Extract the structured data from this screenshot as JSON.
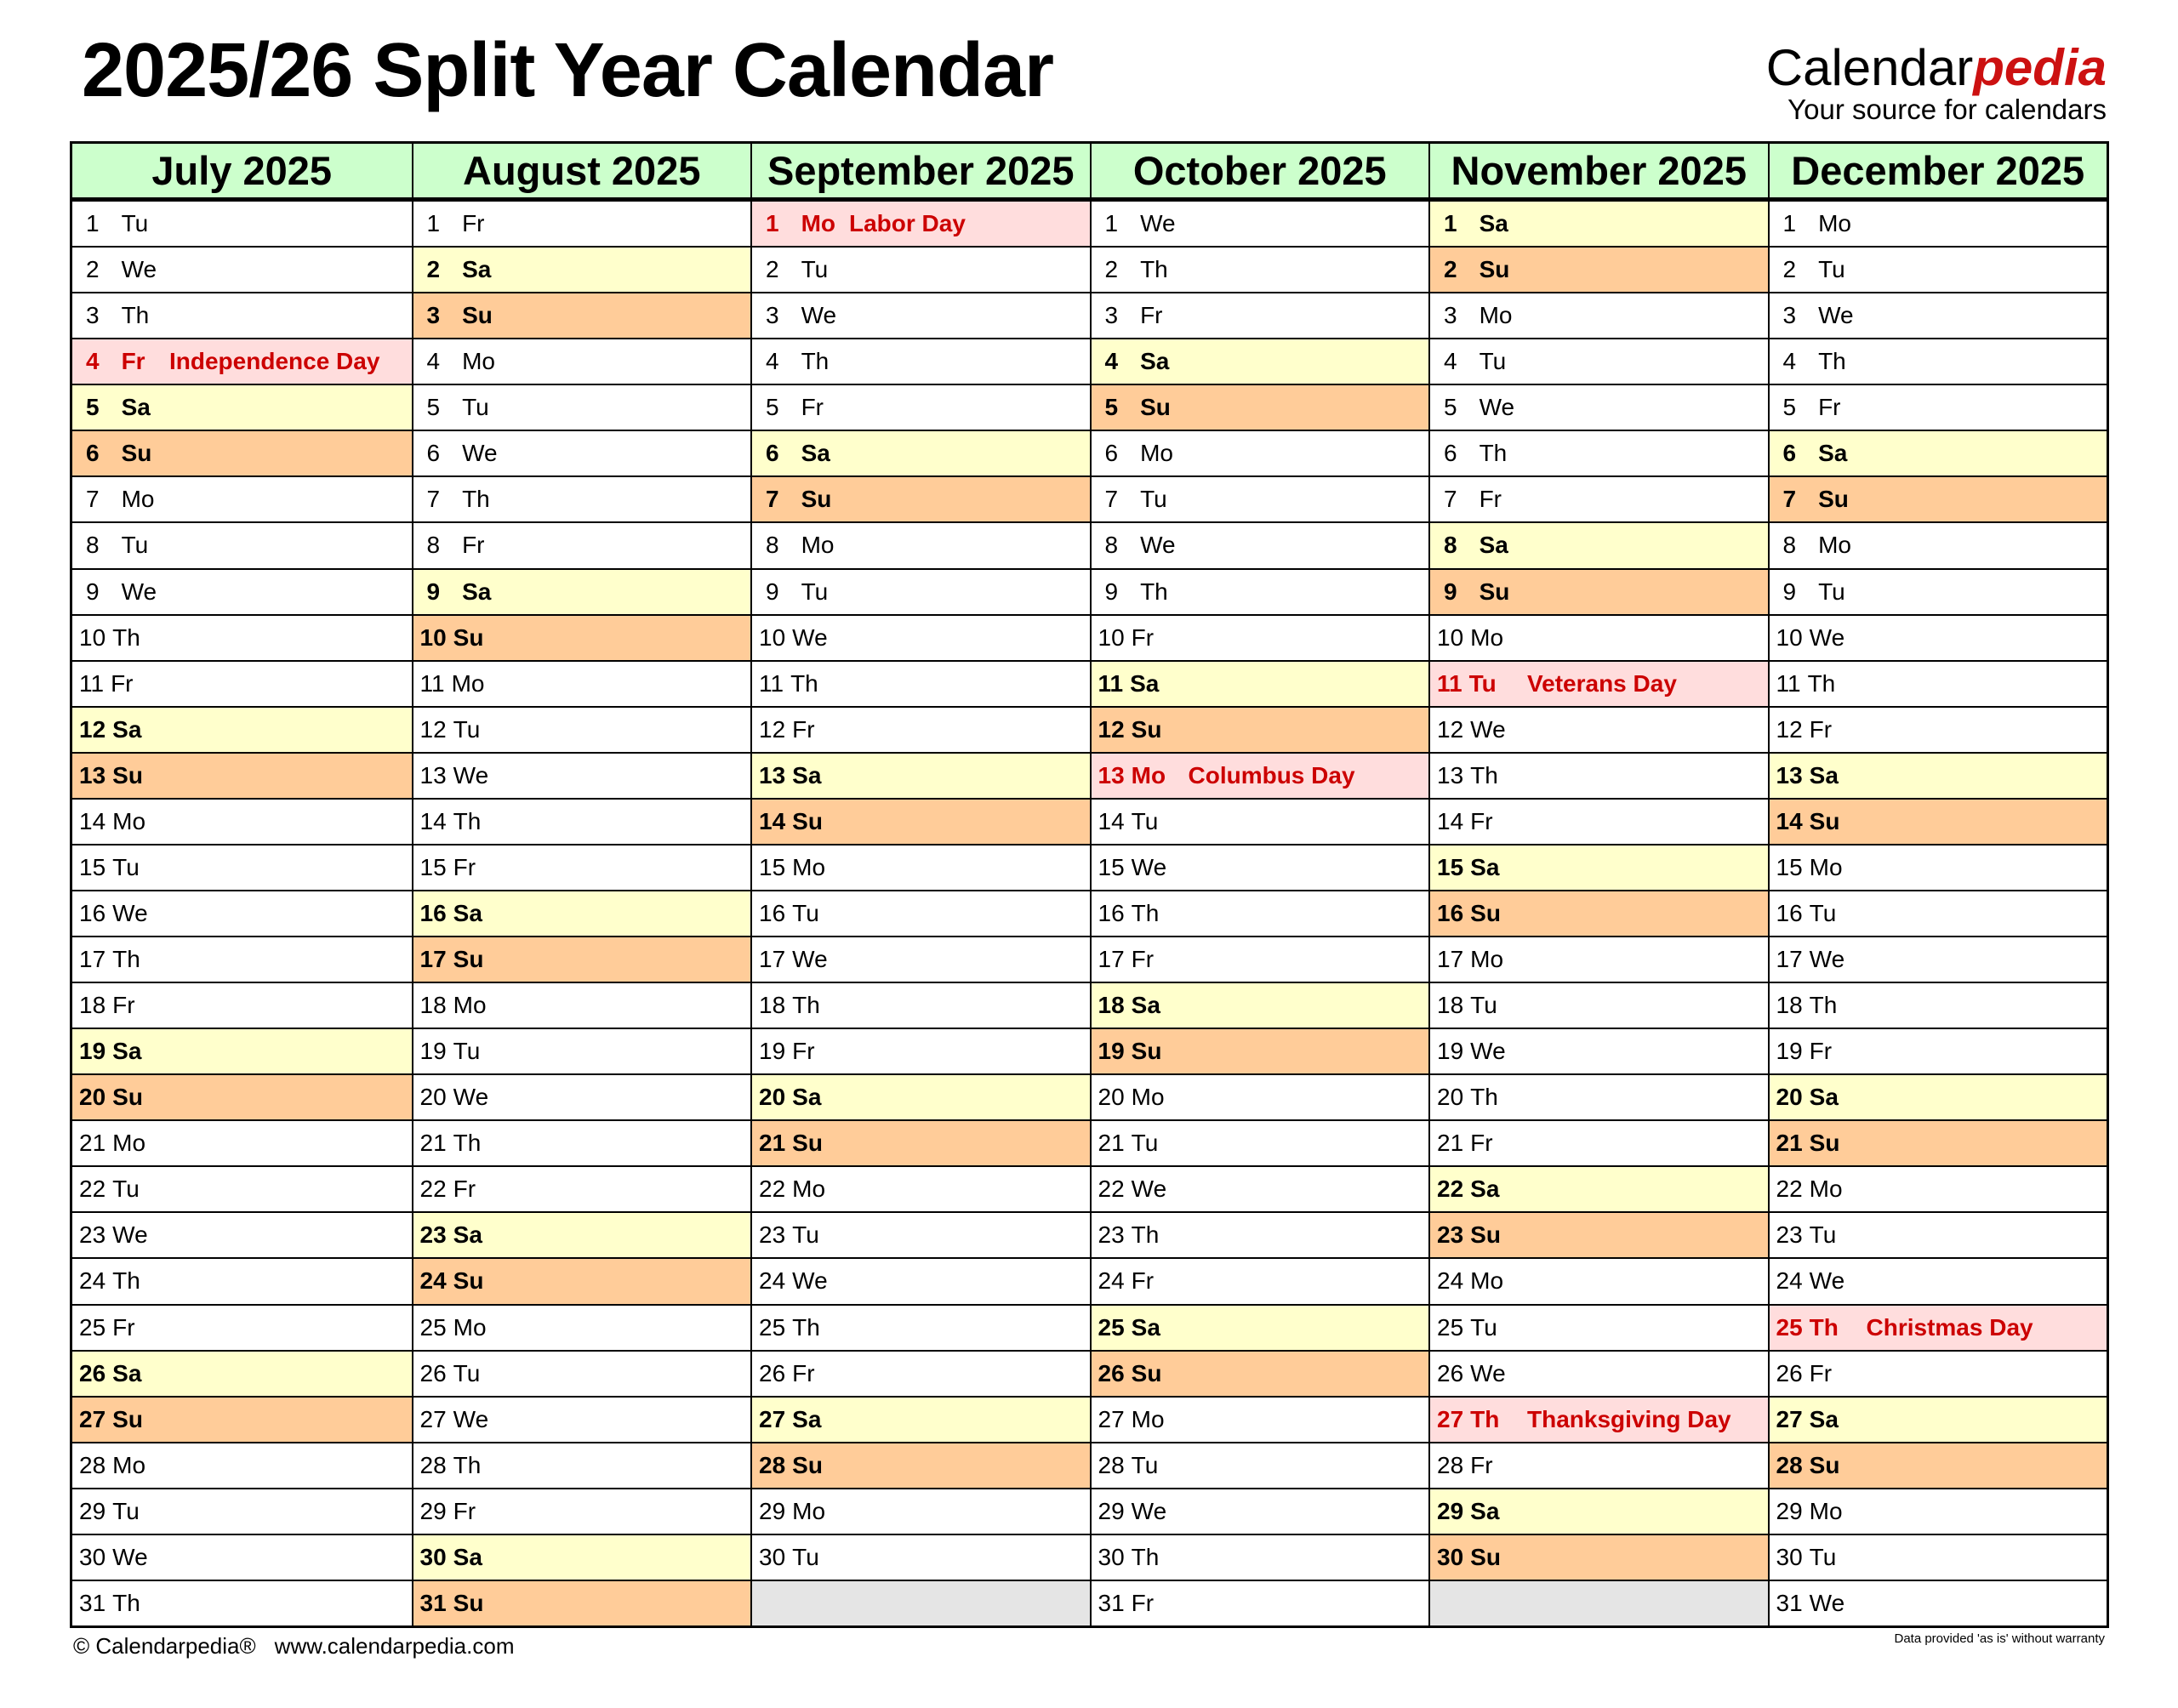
{
  "title": "2025/26 Split Year Calendar",
  "logo": {
    "main": "Calendar",
    "accent": "pedia",
    "tagline": "Your source for calendars"
  },
  "colors": {
    "header": "#ccffcc",
    "saturday": "#ffffcc",
    "sunday": "#ffcc99",
    "holiday_bg": "#ffdddd",
    "holiday_text": "#cc0000",
    "empty": "#e5e5e5",
    "logo_accent": "#cc1111"
  },
  "months": [
    {
      "name": "July 2025",
      "holidays": {
        "4": "Independence Day"
      },
      "days": [
        [
          "1",
          "Tu"
        ],
        [
          "2",
          "We"
        ],
        [
          "3",
          "Th"
        ],
        [
          "4",
          "Fr"
        ],
        [
          "5",
          "Sa"
        ],
        [
          "6",
          "Su"
        ],
        [
          "7",
          "Mo"
        ],
        [
          "8",
          "Tu"
        ],
        [
          "9",
          "We"
        ],
        [
          "10",
          "Th"
        ],
        [
          "11",
          "Fr"
        ],
        [
          "12",
          "Sa"
        ],
        [
          "13",
          "Su"
        ],
        [
          "14",
          "Mo"
        ],
        [
          "15",
          "Tu"
        ],
        [
          "16",
          "We"
        ],
        [
          "17",
          "Th"
        ],
        [
          "18",
          "Fr"
        ],
        [
          "19",
          "Sa"
        ],
        [
          "20",
          "Su"
        ],
        [
          "21",
          "Mo"
        ],
        [
          "22",
          "Tu"
        ],
        [
          "23",
          "We"
        ],
        [
          "24",
          "Th"
        ],
        [
          "25",
          "Fr"
        ],
        [
          "26",
          "Sa"
        ],
        [
          "27",
          "Su"
        ],
        [
          "28",
          "Mo"
        ],
        [
          "29",
          "Tu"
        ],
        [
          "30",
          "We"
        ],
        [
          "31",
          "Th"
        ]
      ]
    },
    {
      "name": "August 2025",
      "holidays": {},
      "days": [
        [
          "1",
          "Fr"
        ],
        [
          "2",
          "Sa"
        ],
        [
          "3",
          "Su"
        ],
        [
          "4",
          "Mo"
        ],
        [
          "5",
          "Tu"
        ],
        [
          "6",
          "We"
        ],
        [
          "7",
          "Th"
        ],
        [
          "8",
          "Fr"
        ],
        [
          "9",
          "Sa"
        ],
        [
          "10",
          "Su"
        ],
        [
          "11",
          "Mo"
        ],
        [
          "12",
          "Tu"
        ],
        [
          "13",
          "We"
        ],
        [
          "14",
          "Th"
        ],
        [
          "15",
          "Fr"
        ],
        [
          "16",
          "Sa"
        ],
        [
          "17",
          "Su"
        ],
        [
          "18",
          "Mo"
        ],
        [
          "19",
          "Tu"
        ],
        [
          "20",
          "We"
        ],
        [
          "21",
          "Th"
        ],
        [
          "22",
          "Fr"
        ],
        [
          "23",
          "Sa"
        ],
        [
          "24",
          "Su"
        ],
        [
          "25",
          "Mo"
        ],
        [
          "26",
          "Tu"
        ],
        [
          "27",
          "We"
        ],
        [
          "28",
          "Th"
        ],
        [
          "29",
          "Fr"
        ],
        [
          "30",
          "Sa"
        ],
        [
          "31",
          "Su"
        ]
      ]
    },
    {
      "name": "September 2025",
      "holidays": {
        "1": "Labor Day"
      },
      "days": [
        [
          "1",
          "Mo"
        ],
        [
          "2",
          "Tu"
        ],
        [
          "3",
          "We"
        ],
        [
          "4",
          "Th"
        ],
        [
          "5",
          "Fr"
        ],
        [
          "6",
          "Sa"
        ],
        [
          "7",
          "Su"
        ],
        [
          "8",
          "Mo"
        ],
        [
          "9",
          "Tu"
        ],
        [
          "10",
          "We"
        ],
        [
          "11",
          "Th"
        ],
        [
          "12",
          "Fr"
        ],
        [
          "13",
          "Sa"
        ],
        [
          "14",
          "Su"
        ],
        [
          "15",
          "Mo"
        ],
        [
          "16",
          "Tu"
        ],
        [
          "17",
          "We"
        ],
        [
          "18",
          "Th"
        ],
        [
          "19",
          "Fr"
        ],
        [
          "20",
          "Sa"
        ],
        [
          "21",
          "Su"
        ],
        [
          "22",
          "Mo"
        ],
        [
          "23",
          "Tu"
        ],
        [
          "24",
          "We"
        ],
        [
          "25",
          "Th"
        ],
        [
          "26",
          "Fr"
        ],
        [
          "27",
          "Sa"
        ],
        [
          "28",
          "Su"
        ],
        [
          "29",
          "Mo"
        ],
        [
          "30",
          "Tu"
        ]
      ]
    },
    {
      "name": "October 2025",
      "holidays": {
        "13": "Columbus Day"
      },
      "days": [
        [
          "1",
          "We"
        ],
        [
          "2",
          "Th"
        ],
        [
          "3",
          "Fr"
        ],
        [
          "4",
          "Sa"
        ],
        [
          "5",
          "Su"
        ],
        [
          "6",
          "Mo"
        ],
        [
          "7",
          "Tu"
        ],
        [
          "8",
          "We"
        ],
        [
          "9",
          "Th"
        ],
        [
          "10",
          "Fr"
        ],
        [
          "11",
          "Sa"
        ],
        [
          "12",
          "Su"
        ],
        [
          "13",
          "Mo"
        ],
        [
          "14",
          "Tu"
        ],
        [
          "15",
          "We"
        ],
        [
          "16",
          "Th"
        ],
        [
          "17",
          "Fr"
        ],
        [
          "18",
          "Sa"
        ],
        [
          "19",
          "Su"
        ],
        [
          "20",
          "Mo"
        ],
        [
          "21",
          "Tu"
        ],
        [
          "22",
          "We"
        ],
        [
          "23",
          "Th"
        ],
        [
          "24",
          "Fr"
        ],
        [
          "25",
          "Sa"
        ],
        [
          "26",
          "Su"
        ],
        [
          "27",
          "Mo"
        ],
        [
          "28",
          "Tu"
        ],
        [
          "29",
          "We"
        ],
        [
          "30",
          "Th"
        ],
        [
          "31",
          "Fr"
        ]
      ]
    },
    {
      "name": "November 2025",
      "holidays": {
        "11": "Veterans Day",
        "27": "Thanksgiving Day"
      },
      "days": [
        [
          "1",
          "Sa"
        ],
        [
          "2",
          "Su"
        ],
        [
          "3",
          "Mo"
        ],
        [
          "4",
          "Tu"
        ],
        [
          "5",
          "We"
        ],
        [
          "6",
          "Th"
        ],
        [
          "7",
          "Fr"
        ],
        [
          "8",
          "Sa"
        ],
        [
          "9",
          "Su"
        ],
        [
          "10",
          "Mo"
        ],
        [
          "11",
          "Tu"
        ],
        [
          "12",
          "We"
        ],
        [
          "13",
          "Th"
        ],
        [
          "14",
          "Fr"
        ],
        [
          "15",
          "Sa"
        ],
        [
          "16",
          "Su"
        ],
        [
          "17",
          "Mo"
        ],
        [
          "18",
          "Tu"
        ],
        [
          "19",
          "We"
        ],
        [
          "20",
          "Th"
        ],
        [
          "21",
          "Fr"
        ],
        [
          "22",
          "Sa"
        ],
        [
          "23",
          "Su"
        ],
        [
          "24",
          "Mo"
        ],
        [
          "25",
          "Tu"
        ],
        [
          "26",
          "We"
        ],
        [
          "27",
          "Th"
        ],
        [
          "28",
          "Fr"
        ],
        [
          "29",
          "Sa"
        ],
        [
          "30",
          "Su"
        ]
      ]
    },
    {
      "name": "December 2025",
      "holidays": {
        "25": "Christmas Day"
      },
      "days": [
        [
          "1",
          "Mo"
        ],
        [
          "2",
          "Tu"
        ],
        [
          "3",
          "We"
        ],
        [
          "4",
          "Th"
        ],
        [
          "5",
          "Fr"
        ],
        [
          "6",
          "Sa"
        ],
        [
          "7",
          "Su"
        ],
        [
          "8",
          "Mo"
        ],
        [
          "9",
          "Tu"
        ],
        [
          "10",
          "We"
        ],
        [
          "11",
          "Th"
        ],
        [
          "12",
          "Fr"
        ],
        [
          "13",
          "Sa"
        ],
        [
          "14",
          "Su"
        ],
        [
          "15",
          "Mo"
        ],
        [
          "16",
          "Tu"
        ],
        [
          "17",
          "We"
        ],
        [
          "18",
          "Th"
        ],
        [
          "19",
          "Fr"
        ],
        [
          "20",
          "Sa"
        ],
        [
          "21",
          "Su"
        ],
        [
          "22",
          "Mo"
        ],
        [
          "23",
          "Tu"
        ],
        [
          "24",
          "We"
        ],
        [
          "25",
          "Th"
        ],
        [
          "26",
          "Fr"
        ],
        [
          "27",
          "Sa"
        ],
        [
          "28",
          "Su"
        ],
        [
          "29",
          "Mo"
        ],
        [
          "30",
          "Tu"
        ],
        [
          "31",
          "We"
        ]
      ]
    }
  ],
  "footer": {
    "copyright": "© Calendarpedia®",
    "url": "www.calendarpedia.com",
    "disclaimer": "Data provided 'as is' without warranty"
  }
}
